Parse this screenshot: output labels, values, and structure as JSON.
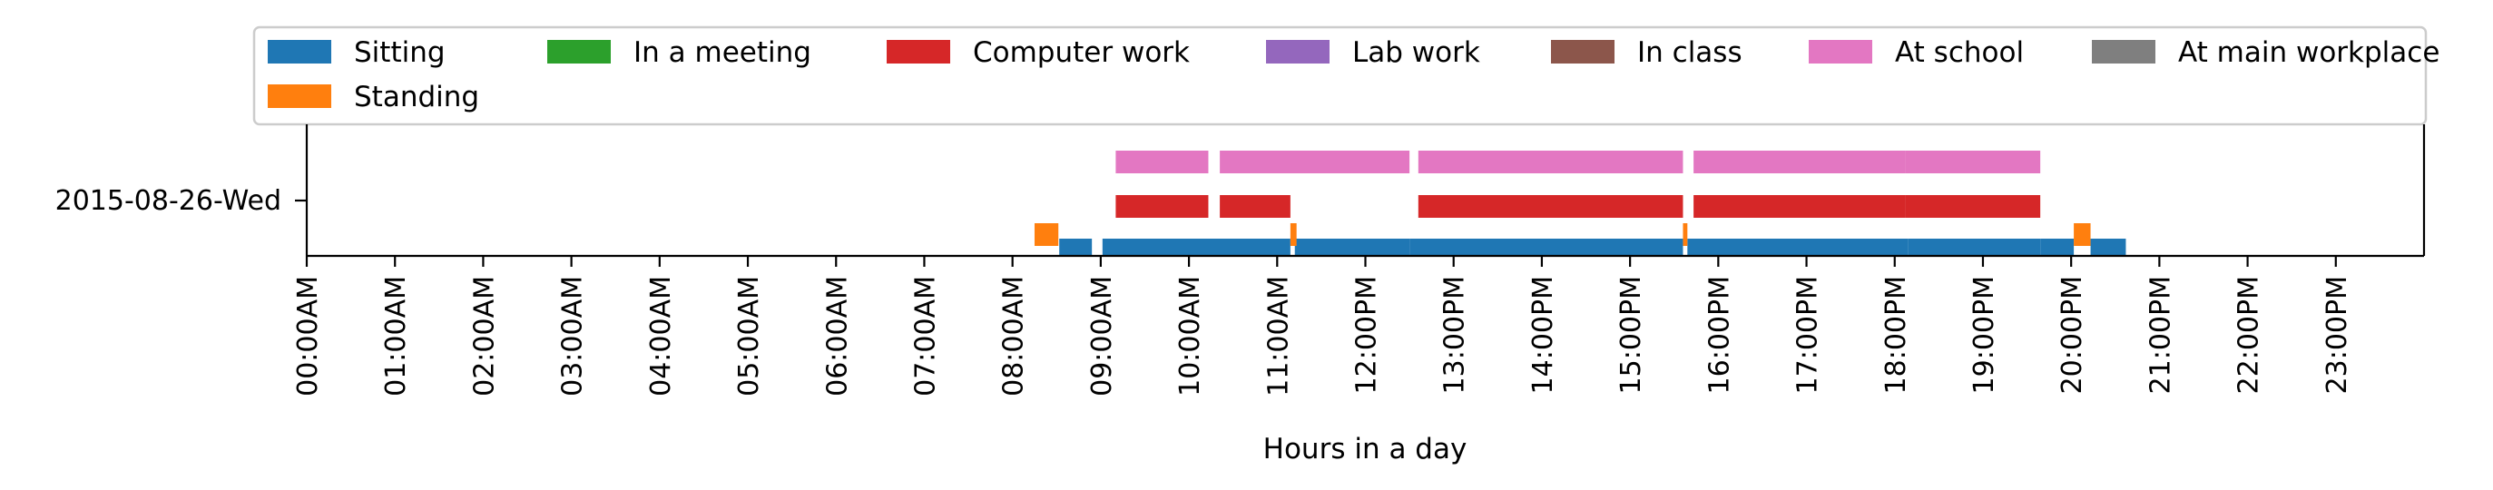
{
  "chart_data": {
    "type": "gantt",
    "title": "",
    "xlabel": "Hours in a day",
    "ylabel": "",
    "xlim": [
      0,
      24
    ],
    "row_label": "2015-08-26-Wed",
    "x_ticks": [
      {
        "value": 0,
        "label": "00:00AM"
      },
      {
        "value": 1,
        "label": "01:00AM"
      },
      {
        "value": 2,
        "label": "02:00AM"
      },
      {
        "value": 3,
        "label": "03:00AM"
      },
      {
        "value": 4,
        "label": "04:00AM"
      },
      {
        "value": 5,
        "label": "05:00AM"
      },
      {
        "value": 6,
        "label": "06:00AM"
      },
      {
        "value": 7,
        "label": "07:00AM"
      },
      {
        "value": 8,
        "label": "08:00AM"
      },
      {
        "value": 9,
        "label": "09:00AM"
      },
      {
        "value": 10,
        "label": "10:00AM"
      },
      {
        "value": 11,
        "label": "11:00AM"
      },
      {
        "value": 12,
        "label": "12:00PM"
      },
      {
        "value": 13,
        "label": "13:00PM"
      },
      {
        "value": 14,
        "label": "14:00PM"
      },
      {
        "value": 15,
        "label": "15:00PM"
      },
      {
        "value": 16,
        "label": "16:00PM"
      },
      {
        "value": 17,
        "label": "17:00PM"
      },
      {
        "value": 18,
        "label": "18:00PM"
      },
      {
        "value": 19,
        "label": "19:00PM"
      },
      {
        "value": 20,
        "label": "20:00PM"
      },
      {
        "value": 21,
        "label": "21:00PM"
      },
      {
        "value": 22,
        "label": "22:00PM"
      },
      {
        "value": 23,
        "label": "23:00PM"
      }
    ],
    "legend_position": "top",
    "series": [
      {
        "name": "Sitting",
        "color": "#1f77b4",
        "level": 0,
        "intervals": [
          [
            8.53,
            8.9
          ],
          [
            9.02,
            11.15
          ],
          [
            11.2,
            12.5
          ],
          [
            12.5,
            15.6
          ],
          [
            15.65,
            18.15
          ],
          [
            18.15,
            19.65
          ],
          [
            19.65,
            20.03
          ],
          [
            20.22,
            20.62
          ]
        ]
      },
      {
        "name": "Standing",
        "color": "#ff7f0e",
        "level": 1,
        "intervals": [
          [
            8.25,
            8.52
          ],
          [
            11.15,
            11.22
          ],
          [
            15.6,
            15.65
          ],
          [
            20.03,
            20.22
          ]
        ]
      },
      {
        "name": "In a meeting",
        "color": "#2ca02c",
        "level": 2,
        "intervals": []
      },
      {
        "name": "Computer work",
        "color": "#d62728",
        "level": 2,
        "intervals": [
          [
            9.17,
            10.22
          ],
          [
            10.35,
            11.15
          ],
          [
            12.6,
            15.6
          ],
          [
            15.72,
            18.12
          ],
          [
            18.12,
            19.65
          ]
        ]
      },
      {
        "name": "Lab work",
        "color": "#9467bd",
        "level": 3,
        "intervals": []
      },
      {
        "name": "In class",
        "color": "#8c564b",
        "level": 3,
        "intervals": []
      },
      {
        "name": "At school",
        "color": "#e377c2",
        "level": 3,
        "intervals": [
          [
            9.17,
            10.22
          ],
          [
            10.35,
            12.5
          ],
          [
            12.6,
            15.6
          ],
          [
            15.72,
            18.12
          ],
          [
            18.12,
            19.65
          ]
        ]
      },
      {
        "name": "At main workplace",
        "color": "#7f7f7f",
        "level": 3,
        "intervals": []
      }
    ]
  }
}
